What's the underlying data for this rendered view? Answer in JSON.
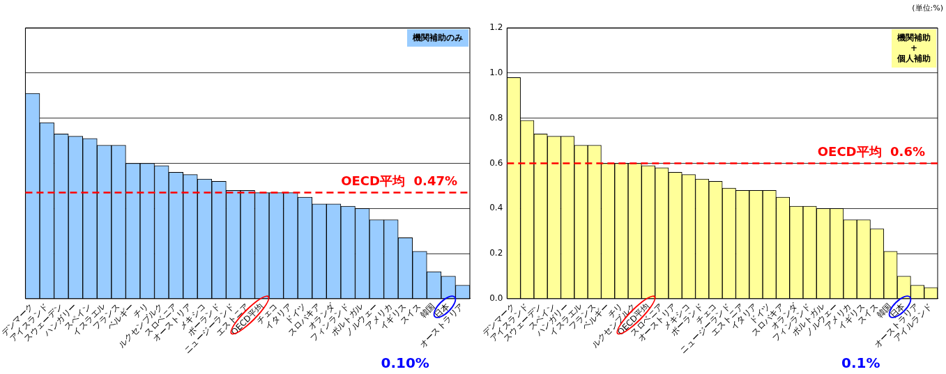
{
  "chart_data": [
    {
      "type": "bar",
      "categories": [
        "デンマーク",
        "アイスランド",
        "スウェーデン",
        "ハンガリー",
        "スペイン",
        "イスラエル",
        "フランス",
        "ベルギー",
        "チリ",
        "ルクセンブルク",
        "スロベニア",
        "オーストリア",
        "メキシコ",
        "ポーランド",
        "ニュージーランド",
        "エストニア",
        "OECD平均",
        "チェコ",
        "イタリア",
        "ドイツ",
        "スロバキア",
        "オランダ",
        "フィンランド",
        "ポルトガル",
        "ノルウェー",
        "アメリカ",
        "イギリス",
        "スイス",
        "韓国",
        "日本",
        "オーストラリア"
      ],
      "series": [
        {
          "color": "#99ccff",
          "values": [
            0.91,
            0.78,
            0.73,
            0.72,
            0.71,
            0.68,
            0.68,
            0.6,
            0.6,
            0.59,
            0.56,
            0.55,
            0.53,
            0.52,
            0.48,
            0.48,
            0.47,
            0.47,
            0.47,
            0.45,
            0.42,
            0.42,
            0.41,
            0.4,
            0.35,
            0.35,
            0.27,
            0.21,
            0.12,
            0.1,
            0.06
          ]
        }
      ],
      "ylim": [
        0,
        1.2
      ],
      "yticks": [
        0,
        0.2,
        0.4,
        0.6,
        0.8,
        1,
        1.2
      ],
      "tick_labels": "x",
      "grid": "y",
      "legend": false,
      "ref_lines": [
        {
          "axis": "y",
          "value": 0.47,
          "label": "OECD平均  0.47%",
          "color": "#ff0000",
          "line_style": "dashed"
        }
      ],
      "annotations": [
        "機関補助のみ",
        "0.10%"
      ]
    },
    {
      "type": "bar",
      "categories": [
        "デンマーク",
        "アイスランド",
        "スウェーデン",
        "スペイン",
        "ハンガリー",
        "イスラエル",
        "フランス",
        "ベルギー",
        "チリ",
        "ルクセンブルク",
        "OECD平均",
        "スロベニア",
        "オーストリア",
        "メキシコ",
        "ポーランド",
        "チェコ",
        "ニュージーランド",
        "エストニア",
        "イタリア",
        "ドイツ",
        "スロバキア",
        "オランダ",
        "フィンランド",
        "ポルトガル",
        "ノルウェー",
        "アメリカ",
        "イギリス",
        "スイス",
        "韓国",
        "日本",
        "オーストラリア",
        "アイルランド"
      ],
      "series": [
        {
          "color": "#ffff99",
          "values": [
            0.98,
            0.79,
            0.73,
            0.72,
            0.72,
            0.68,
            0.68,
            0.6,
            0.6,
            0.6,
            0.59,
            0.58,
            0.56,
            0.55,
            0.53,
            0.52,
            0.49,
            0.48,
            0.48,
            0.48,
            0.45,
            0.41,
            0.41,
            0.4,
            0.4,
            0.35,
            0.35,
            0.31,
            0.21,
            0.1,
            0.06,
            0.05
          ]
        }
      ],
      "ylim": [
        0,
        1.2
      ],
      "yticks": [
        {
          "value": 0,
          "label": "0.0"
        },
        {
          "value": 0.2,
          "label": "0.2"
        },
        {
          "value": 0.4,
          "label": "0.4"
        },
        {
          "value": 0.6,
          "label": "0.6"
        },
        {
          "value": 0.8,
          "label": "0.8"
        },
        {
          "value": 1,
          "label": "1.0"
        },
        {
          "value": 1.2,
          "label": "1.2"
        }
      ],
      "grid": "y",
      "legend": false,
      "ref_lines": [
        {
          "axis": "y",
          "value": 0.6,
          "label": "OECD平均  0.6%",
          "color": "#ff0000",
          "line_style": "dashed"
        }
      ],
      "annotations": [
        "機関補助\n+\n個人補助",
        "(単位:%)",
        "0.1%"
      ]
    }
  ]
}
